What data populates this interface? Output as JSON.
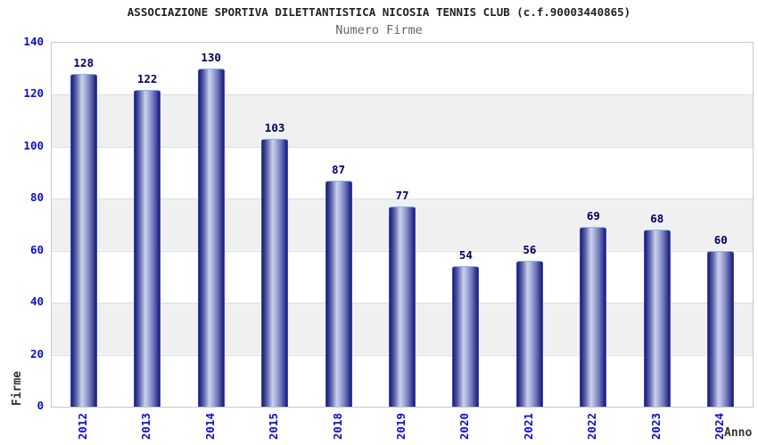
{
  "chart_data": {
    "type": "bar",
    "title": "ASSOCIAZIONE SPORTIVA DILETTANTISTICA NICOSIA TENNIS CLUB (c.f.90003440865)",
    "subtitle": "Numero Firme",
    "categories": [
      "2012",
      "2013",
      "2014",
      "2015",
      "2018",
      "2019",
      "2020",
      "2021",
      "2022",
      "2023",
      "2024"
    ],
    "values": [
      128,
      122,
      130,
      103,
      87,
      77,
      54,
      56,
      69,
      68,
      60
    ],
    "xlabel": "Anno",
    "ylabel": "Firme",
    "ylim": [
      0,
      140
    ],
    "yticks": [
      0,
      20,
      40,
      60,
      80,
      100,
      120,
      140
    ],
    "grid": "horizontal-bands",
    "legend": "none",
    "colors": {
      "bar_dark": "#1b1b72",
      "bar_light": "#ccd1ee",
      "bar_side_border": "#3947cc",
      "bar_top_border": "#85b6ea",
      "tick_label": "#0b0bd2",
      "value_label": "#000066",
      "title": "#222222",
      "subtitle": "#666666",
      "band_gray": "#f0f0f0",
      "gridline": "#dedede",
      "plot_border": "#c9c9c9"
    }
  }
}
